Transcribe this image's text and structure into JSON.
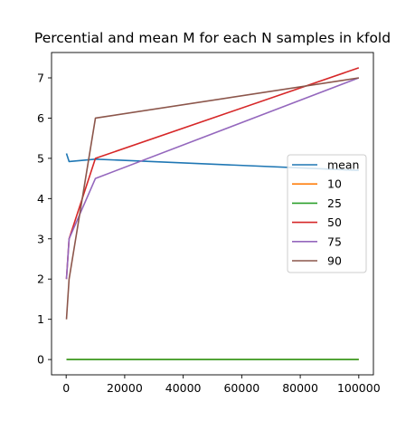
{
  "chart_data": {
    "type": "line",
    "title": "Percential and mean M for each N samples in kfold",
    "xlabel": "",
    "ylabel": "",
    "xlim": [
      -5000,
      105000
    ],
    "ylim": [
      -0.38,
      7.63
    ],
    "x_ticks": [
      0,
      20000,
      40000,
      60000,
      80000,
      100000
    ],
    "x_tick_labels": [
      "0",
      "20000",
      "40000",
      "60000",
      "80000",
      "100000"
    ],
    "y_ticks": [
      0,
      1,
      2,
      3,
      4,
      5,
      6,
      7
    ],
    "y_tick_labels": [
      "0",
      "1",
      "2",
      "3",
      "4",
      "5",
      "6",
      "7"
    ],
    "grid": false,
    "legend_position": "center-right",
    "series": [
      {
        "name": "mean",
        "color": "#1f77b4",
        "points": [
          [
            100,
            5.12
          ],
          [
            1000,
            4.92
          ],
          [
            10000,
            4.98
          ],
          [
            100000,
            4.7
          ]
        ]
      },
      {
        "name": "10",
        "color": "#ff7f0e",
        "points": [
          [
            100,
            0
          ],
          [
            1000,
            0
          ],
          [
            10000,
            0
          ],
          [
            100000,
            0
          ]
        ]
      },
      {
        "name": "25",
        "color": "#2ca02c",
        "points": [
          [
            100,
            0
          ],
          [
            1000,
            0
          ],
          [
            10000,
            0
          ],
          [
            100000,
            0
          ]
        ]
      },
      {
        "name": "50",
        "color": "#d62728",
        "points": [
          [
            100,
            2
          ],
          [
            1000,
            3
          ],
          [
            10000,
            5
          ],
          [
            100000,
            7.25
          ]
        ]
      },
      {
        "name": "75",
        "color": "#9467bd",
        "points": [
          [
            100,
            2
          ],
          [
            1000,
            3
          ],
          [
            10000,
            4.5
          ],
          [
            100000,
            7
          ]
        ]
      },
      {
        "name": "90",
        "color": "#8c564b",
        "points": [
          [
            100,
            1
          ],
          [
            1000,
            2
          ],
          [
            10000,
            6
          ],
          [
            100000,
            7
          ]
        ]
      }
    ]
  }
}
